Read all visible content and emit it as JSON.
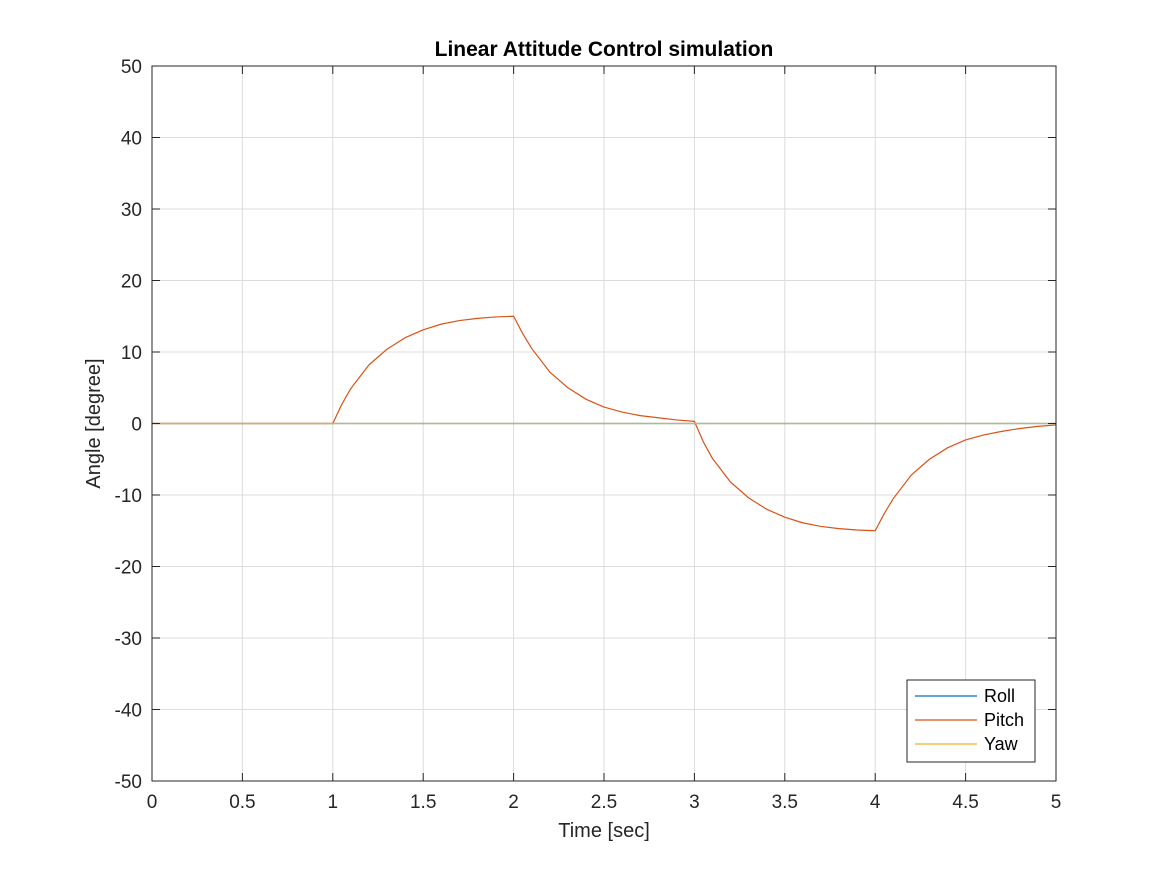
{
  "chart_data": {
    "type": "line",
    "title": "Linear Attitude Control simulation",
    "xlabel": "Time [sec]",
    "ylabel": "Angle [degree]",
    "xlim": [
      0,
      5
    ],
    "ylim": [
      -50,
      50
    ],
    "xticks": [
      0,
      0.5,
      1,
      1.5,
      2,
      2.5,
      3,
      3.5,
      4,
      4.5,
      5
    ],
    "xtick_labels": [
      "0",
      "0.5",
      "1",
      "1.5",
      "2",
      "2.5",
      "3",
      "3.5",
      "4",
      "4.5",
      "5"
    ],
    "yticks": [
      -50,
      -40,
      -30,
      -20,
      -10,
      0,
      10,
      20,
      30,
      40,
      50
    ],
    "ytick_labels": [
      "-50",
      "-40",
      "-30",
      "-20",
      "-10",
      "0",
      "10",
      "20",
      "30",
      "40",
      "50"
    ],
    "grid": true,
    "legend_position": "bottom-right",
    "series": [
      {
        "name": "Roll",
        "color": "#0072BD",
        "x": [
          0,
          0.5,
          1,
          1.5,
          2,
          2.5,
          3,
          3.5,
          4,
          4.5,
          5
        ],
        "y": [
          0,
          0,
          0,
          0,
          0,
          0,
          0,
          0,
          0,
          0,
          0
        ]
      },
      {
        "name": "Pitch",
        "color": "#D95319",
        "x": [
          0,
          0.5,
          1,
          1.05,
          1.1,
          1.2,
          1.3,
          1.4,
          1.5,
          1.6,
          1.7,
          1.8,
          1.9,
          2,
          2.05,
          2.1,
          2.2,
          2.3,
          2.4,
          2.5,
          2.6,
          2.7,
          2.8,
          2.9,
          3,
          3.05,
          3.1,
          3.2,
          3.3,
          3.4,
          3.5,
          3.6,
          3.7,
          3.8,
          3.9,
          4,
          4.05,
          4.1,
          4.2,
          4.3,
          4.4,
          4.5,
          4.6,
          4.7,
          4.8,
          4.9,
          5
        ],
        "y": [
          0,
          0,
          0,
          2.7,
          4.9,
          8.2,
          10.4,
          12.0,
          13.1,
          13.9,
          14.4,
          14.7,
          14.9,
          15.0,
          12.6,
          10.5,
          7.2,
          5.0,
          3.4,
          2.3,
          1.6,
          1.1,
          0.8,
          0.5,
          0.3,
          -2.6,
          -4.9,
          -8.2,
          -10.4,
          -12.0,
          -13.1,
          -13.9,
          -14.4,
          -14.7,
          -14.9,
          -15.0,
          -12.6,
          -10.5,
          -7.2,
          -5.0,
          -3.4,
          -2.3,
          -1.6,
          -1.1,
          -0.7,
          -0.4,
          -0.2
        ]
      },
      {
        "name": "Yaw",
        "color": "#EDB120",
        "x": [
          0,
          0.5,
          1,
          1.5,
          2,
          2.5,
          3,
          3.5,
          4,
          4.5,
          5
        ],
        "y": [
          0,
          0,
          0,
          0,
          0,
          0,
          0,
          0,
          0,
          0,
          0
        ]
      }
    ]
  }
}
